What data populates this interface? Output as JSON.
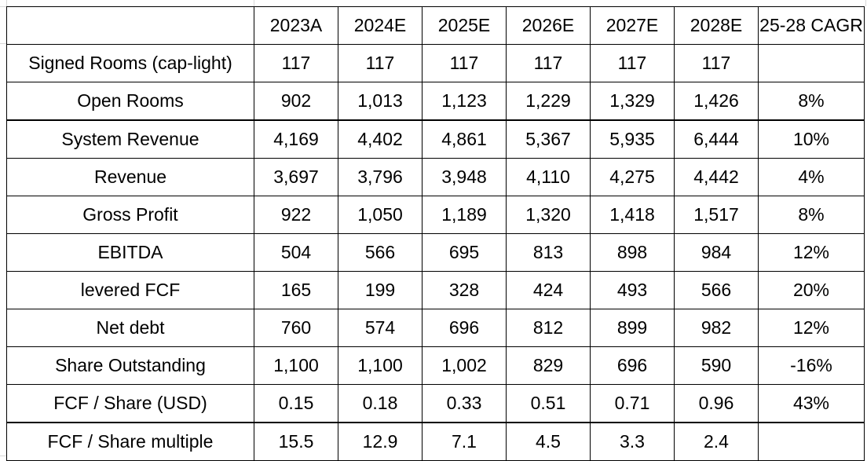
{
  "table": {
    "columns": [
      "",
      "2023A",
      "2024E",
      "2025E",
      "2026E",
      "2027E",
      "2028E",
      "25-28 CAGR"
    ],
    "rows": [
      {
        "label": "Signed Rooms (cap-light)",
        "values": [
          "117",
          "117",
          "117",
          "117",
          "117",
          "117",
          ""
        ]
      },
      {
        "label": "Open Rooms",
        "values": [
          "902",
          "1,013",
          "1,123",
          "1,229",
          "1,329",
          "1,426",
          "8%"
        ]
      },
      {
        "label": "System Revenue",
        "values": [
          "4,169",
          "4,402",
          "4,861",
          "5,367",
          "5,935",
          "6,444",
          "10%"
        ]
      },
      {
        "label": "Revenue",
        "values": [
          "3,697",
          "3,796",
          "3,948",
          "4,110",
          "4,275",
          "4,442",
          "4%"
        ]
      },
      {
        "label": "Gross Profit",
        "values": [
          "922",
          "1,050",
          "1,189",
          "1,320",
          "1,418",
          "1,517",
          "8%"
        ]
      },
      {
        "label": "EBITDA",
        "values": [
          "504",
          "566",
          "695",
          "813",
          "898",
          "984",
          "12%"
        ]
      },
      {
        "label": "levered FCF",
        "values": [
          "165",
          "199",
          "328",
          "424",
          "493",
          "566",
          "20%"
        ]
      },
      {
        "label": "Net debt",
        "values": [
          "760",
          "574",
          "696",
          "812",
          "899",
          "982",
          "12%"
        ]
      },
      {
        "label": "Share Outstanding",
        "values": [
          "1,100",
          "1,100",
          "1,002",
          "829",
          "696",
          "590",
          "-16%"
        ]
      },
      {
        "label": "FCF / Share (USD)",
        "values": [
          "0.15",
          "0.18",
          "0.33",
          "0.51",
          "0.71",
          "0.96",
          "43%"
        ]
      },
      {
        "label": "FCF / Share multiple",
        "values": [
          "15.5",
          "12.9",
          "7.1",
          "4.5",
          "3.3",
          "2.4",
          ""
        ]
      }
    ]
  }
}
